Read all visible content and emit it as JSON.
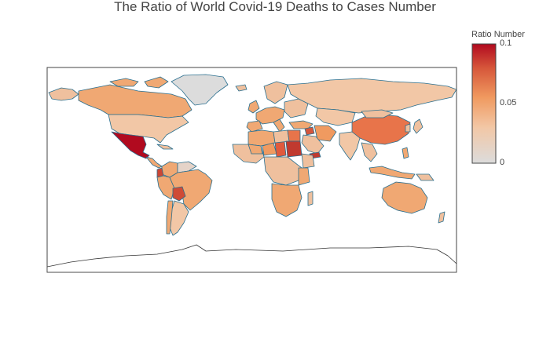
{
  "title": "The Ratio of World Covid-19 Deaths to Cases Number",
  "colorbar": {
    "title": "Ratio Number",
    "ticks": [
      "0.1",
      "0.05",
      "0"
    ],
    "range": [
      0,
      0.1
    ],
    "colorscale": [
      "#dcdcdc",
      "#f2c7a6",
      "#f09a60",
      "#d6563a",
      "#b10a1f"
    ]
  },
  "map": {
    "projection": "equirectangular",
    "border_color": "#2a6f8f",
    "land_default": "#efc09e",
    "no_data_color": "#d9d9d9"
  },
  "chart_data": {
    "type": "heatmap",
    "title": "The Ratio of World Covid-19 Deaths to Cases Number",
    "colorbar_title": "Ratio Number",
    "zlim": [
      0,
      0.1
    ],
    "regions": [
      {
        "name": "Mexico",
        "value": 0.1
      },
      {
        "name": "Yemen",
        "value": 0.08
      },
      {
        "name": "Sudan",
        "value": 0.075
      },
      {
        "name": "Ecuador",
        "value": 0.075
      },
      {
        "name": "Bolivia",
        "value": 0.07
      },
      {
        "name": "Chad",
        "value": 0.07
      },
      {
        "name": "Egypt",
        "value": 0.06
      },
      {
        "name": "Syria",
        "value": 0.065
      },
      {
        "name": "China",
        "value": 0.06
      },
      {
        "name": "Niger",
        "value": 0.05
      },
      {
        "name": "Mali",
        "value": 0.045
      },
      {
        "name": "Iran",
        "value": 0.05
      },
      {
        "name": "United Kingdom",
        "value": 0.045
      },
      {
        "name": "Italy",
        "value": 0.045
      },
      {
        "name": "Canada",
        "value": 0.04
      },
      {
        "name": "Australia",
        "value": 0.04
      },
      {
        "name": "Peru",
        "value": 0.04
      },
      {
        "name": "Colombia",
        "value": 0.04
      },
      {
        "name": "Brazil",
        "value": 0.035
      },
      {
        "name": "United States",
        "value": 0.025
      },
      {
        "name": "Russia",
        "value": 0.025
      },
      {
        "name": "India",
        "value": 0.02
      },
      {
        "name": "Kazakhstan",
        "value": 0.02
      },
      {
        "name": "Greenland",
        "value": 0.0
      },
      {
        "name": "Venezuela",
        "value": 0.01
      },
      {
        "name": "Argentina",
        "value": 0.03
      },
      {
        "name": "South Africa",
        "value": 0.03
      }
    ]
  }
}
